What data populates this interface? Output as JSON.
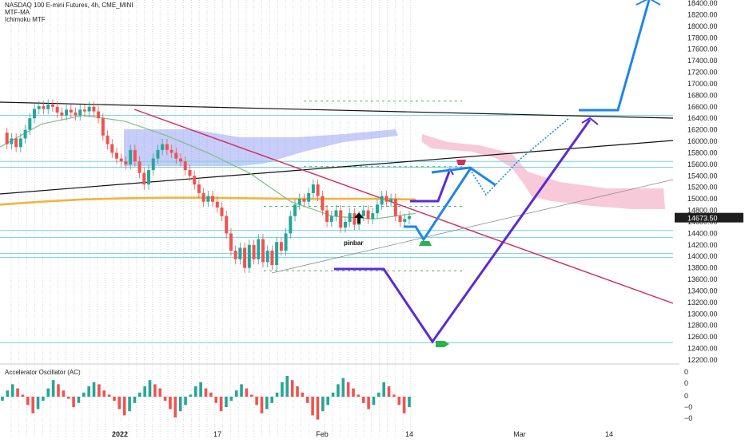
{
  "header": {
    "line1": "NASDAQ 100 E-mini Futures, 4h, CME_MINI",
    "line2": "MTF-MA",
    "line3": "Ichimoku MTF"
  },
  "colors": {
    "up": "#26a69a",
    "down": "#ef5350",
    "cyan_level": "#6fd3e6",
    "red_trend": "#d6265a",
    "black_line": "#111111",
    "orange_ma": "#f4b23f",
    "green_ma": "#7fbf86",
    "cloud_blue": "#8090f0",
    "cloud_pink": "#f4a7c0",
    "purple_path": "#5b2ad6",
    "blue_path": "#1f86e8",
    "price_box": "#1e1e1e"
  },
  "chart_data": [
    {
      "type": "line",
      "title": "NASDAQ 100 E-mini Futures, 4h, CME_MINI",
      "indicators": [
        "MTF-MA",
        "Ichimoku MTF"
      ],
      "xlabels": [
        "2022",
        "17",
        "Feb",
        "14",
        "Mar",
        "14"
      ],
      "y_ticks": [
        12200,
        12400,
        12600,
        12800,
        13000,
        13200,
        13400,
        13600,
        13800,
        14000,
        14200,
        14400,
        14600,
        14800,
        15000,
        15200,
        15400,
        15600,
        15800,
        16000,
        16200,
        16400,
        16600,
        16800,
        17000,
        17200,
        17400,
        17600,
        17800,
        18000,
        18200,
        18400
      ],
      "ylim": [
        12100,
        18500
      ],
      "last_price": "14673.50",
      "annotation": "pinbar",
      "price_path": [
        16150,
        15950,
        16050,
        15900,
        16050,
        16200,
        16400,
        16560,
        16610,
        16560,
        16640,
        16600,
        16500,
        16450,
        16550,
        16500,
        16450,
        16550,
        16520,
        16600,
        16520,
        16400,
        16100,
        15950,
        15800,
        15700,
        15650,
        15600,
        15850,
        15650,
        15450,
        15250,
        15500,
        15700,
        15850,
        15950,
        15850,
        15800,
        15700,
        15650,
        15500,
        15400,
        15250,
        15100,
        14950,
        15050,
        14950,
        14850,
        14700,
        14400,
        14100,
        13950,
        14150,
        13800,
        14200,
        13950,
        14300,
        13900,
        14100,
        13850,
        14250,
        14100,
        14400,
        14700,
        14900,
        15000,
        14950,
        15100,
        15250,
        15050,
        14800,
        14600,
        14700,
        14800,
        14500,
        14600,
        14750,
        14550,
        14700,
        14800,
        14650,
        14750,
        14900,
        15050,
        14950,
        15000,
        14700,
        14600,
        14650,
        14700
      ],
      "moving_average_slow": [
        14900,
        14950,
        14990,
        15010,
        15020,
        15020,
        15010,
        15000,
        15000,
        15000,
        14990
      ],
      "moving_average_fast": [
        15900,
        16300,
        16450,
        16350,
        16100,
        15800,
        15450,
        14950,
        14700,
        14650,
        14750
      ],
      "ichimoku_cloud_blue": [
        16150,
        15580
      ],
      "ichimoku_cloud_pink": [
        16000,
        14850
      ],
      "horizontal_levels": [
        16450,
        15650,
        15550,
        14450,
        14330,
        14050,
        13980,
        12500
      ],
      "dashed_green_levels": [
        16700,
        15560,
        14870,
        13750
      ],
      "projection_purple": [
        14600,
        13800,
        12550,
        16400
      ],
      "projection_blue": [
        14400,
        15600,
        15050,
        16600,
        18500
      ]
    },
    {
      "type": "bar",
      "title": "Accelerator Oscillator (AC)",
      "y_ticks": [
        "0",
        "0",
        "0",
        "−0",
        "−0"
      ],
      "values": [
        -0.2,
        0.3,
        0.6,
        0.4,
        0.1,
        -0.4,
        -0.8,
        -0.6,
        -0.2,
        0.4,
        0.8,
        0.6,
        0.3,
        -0.1,
        -0.5,
        -0.3,
        0.2,
        0.5,
        0.7,
        0.6,
        0.3,
        0.1,
        -0.2,
        -0.6,
        -0.9,
        -0.7,
        -0.3,
        0.2,
        0.5,
        0.8,
        0.6,
        0.4,
        -0.2,
        -0.6,
        -1.0,
        -0.7,
        -0.4,
        0.1,
        0.5,
        0.7,
        0.4,
        0.2,
        -0.3,
        -0.7,
        -0.5,
        -0.2,
        0.3,
        0.6,
        0.4,
        0.1,
        -0.4,
        -0.8,
        -0.6,
        -0.3,
        0.2,
        0.7,
        1.0,
        0.8,
        0.5,
        0.2,
        -0.3,
        -0.9,
        -1.1,
        -0.7,
        -0.4,
        0.2,
        0.6,
        0.9,
        0.7,
        0.4,
        0.1,
        -0.3,
        -0.6,
        -0.4,
        0.2,
        0.7,
        0.5,
        0.1,
        -0.4,
        -0.8,
        -0.5
      ]
    }
  ]
}
